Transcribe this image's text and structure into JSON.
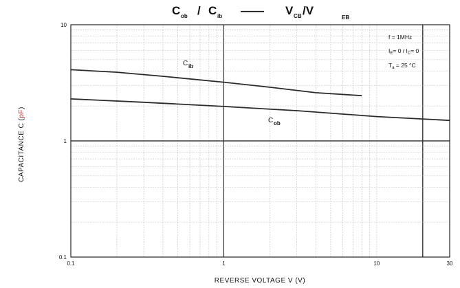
{
  "title": {
    "part1_main": "C",
    "part1_sub": "ob",
    "slash": "/",
    "part2_main": "C",
    "part2_sub": "ib",
    "dash": "——",
    "part3_main": "V",
    "part3_sub": "CB",
    "part3_sep": "/V",
    "part4_sub": "EB"
  },
  "conditions": {
    "line1": "f = 1MHz",
    "line2_main": "I",
    "line2_sub": "E",
    "line2_rest": "= 0  /  I",
    "line2_sub2": "C",
    "line2_end": "= 0",
    "line3_main": "T",
    "line3_sub": "a",
    "line3_rest": " = 25 °C"
  },
  "chart_data": {
    "type": "line",
    "xscale": "log",
    "yscale": "log",
    "xlim": [
      0.1,
      30
    ],
    "ylim": [
      0.1,
      10
    ],
    "xlabel": "REVERSE VOLTAGE V (V)",
    "ylabel_main": "CAPACITANCE C (",
    "ylabel_unit": "pF",
    "ylabel_end": ")",
    "xtick_labels": [
      "0.1",
      "1",
      "10",
      "30"
    ],
    "xtick_values": [
      0.1,
      1,
      10,
      30
    ],
    "ytick_labels": [
      "0.1",
      "1",
      "10"
    ],
    "ytick_values": [
      0.1,
      1,
      10
    ],
    "grid": true,
    "series": [
      {
        "name": "Cib",
        "label_main": "C",
        "label_sub": "ib",
        "x": [
          0.1,
          0.2,
          0.4,
          1.0,
          2.0,
          4.0,
          8.0
        ],
        "y": [
          4.1,
          3.9,
          3.6,
          3.2,
          2.9,
          2.6,
          2.45
        ]
      },
      {
        "name": "Cob",
        "label_main": "C",
        "label_sub": "ob",
        "x": [
          0.1,
          0.3,
          1.0,
          3.0,
          10.0,
          30.0
        ],
        "y": [
          2.3,
          2.15,
          1.98,
          1.82,
          1.62,
          1.5
        ]
      }
    ],
    "emphasized_x": [
      1,
      20
    ],
    "emphasized_y": [
      1
    ]
  }
}
